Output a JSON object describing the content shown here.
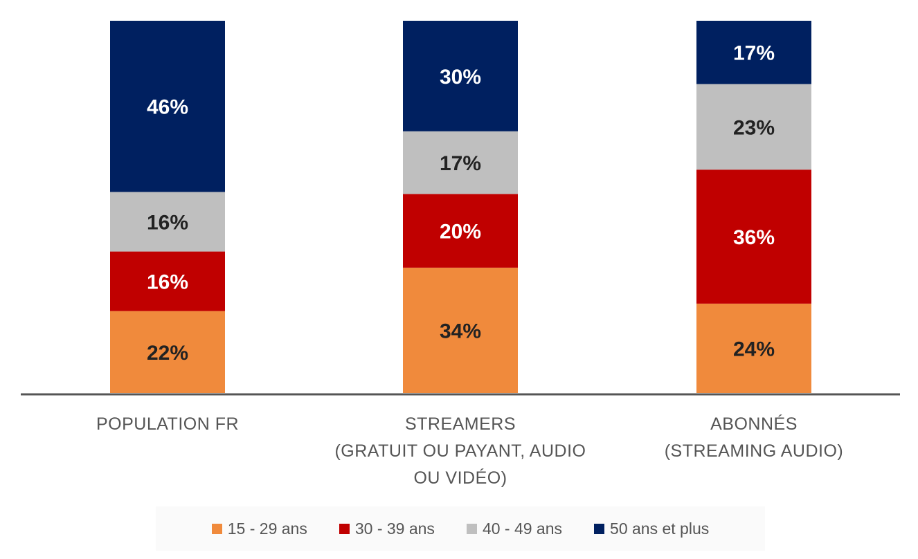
{
  "chart_data": {
    "type": "bar",
    "stacked": true,
    "categories": [
      [
        "POPULATION FR"
      ],
      [
        "STREAMERS",
        "(GRATUIT OU PAYANT, AUDIO",
        "OU VIDÉO)"
      ],
      [
        "ABONNÉS",
        "(STREAMING AUDIO)"
      ]
    ],
    "series": [
      {
        "name": "15 - 29 ans",
        "color": "#f08a3c",
        "label_color": "#222222",
        "values": [
          22,
          34,
          24
        ],
        "labels": [
          "22%",
          "34%",
          "24%"
        ]
      },
      {
        "name": "30 - 39 ans",
        "color": "#c00000",
        "label_color": "#ffffff",
        "values": [
          16,
          20,
          36
        ],
        "labels": [
          "16%",
          "20%",
          "36%"
        ]
      },
      {
        "name": "40 - 49 ans",
        "color": "#bfbfbf",
        "label_color": "#222222",
        "values": [
          16,
          17,
          23
        ],
        "labels": [
          "16%",
          "17%",
          "23%"
        ]
      },
      {
        "name": "50 ans et plus",
        "color": "#002060",
        "label_color": "#ffffff",
        "values": [
          46,
          30,
          17
        ],
        "labels": [
          "46%",
          "30%",
          "17%"
        ]
      }
    ],
    "ylim": [
      0,
      100
    ],
    "legend_position": "bottom",
    "grid": false
  }
}
